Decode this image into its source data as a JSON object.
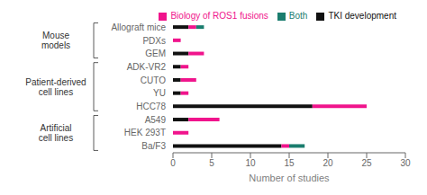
{
  "chart_data": {
    "type": "bar",
    "orientation": "horizontal",
    "stacked": true,
    "categories": [
      "Allograft mice",
      "PDXs",
      "GEM",
      "ADK-VR2",
      "CUTO",
      "YU",
      "HCC78",
      "A549",
      "HEK 293T",
      "Ba/F3"
    ],
    "series": [
      {
        "name": "TKI development",
        "color": "#111111",
        "values": [
          2,
          0,
          2,
          1,
          1,
          1,
          18,
          2,
          0,
          14
        ]
      },
      {
        "name": "Biology of ROS1 fusions",
        "color": "#f0148c",
        "values": [
          1,
          1,
          2,
          1,
          2,
          1,
          7,
          4,
          2,
          1
        ]
      },
      {
        "name": "Both",
        "color": "#1a7d6e",
        "values": [
          1,
          0,
          0,
          0,
          0,
          0,
          0,
          0,
          0,
          2
        ]
      }
    ],
    "xlabel": "Number of studies",
    "xlim": [
      0,
      30
    ],
    "xticks": [
      0,
      5,
      10,
      15,
      20,
      25,
      30
    ],
    "legend": "upper right",
    "groups": [
      {
        "label": "Mouse\nmodels",
        "categories": [
          "Allograft mice",
          "PDXs",
          "GEM"
        ]
      },
      {
        "label": "Patient-derived\ncell lines",
        "categories": [
          "ADK-VR2",
          "CUTO",
          "YU",
          "HCC78"
        ]
      },
      {
        "label": "Artificial\ncell lines",
        "categories": [
          "A549",
          "HEK 293T",
          "Ba/F3"
        ]
      }
    ]
  }
}
